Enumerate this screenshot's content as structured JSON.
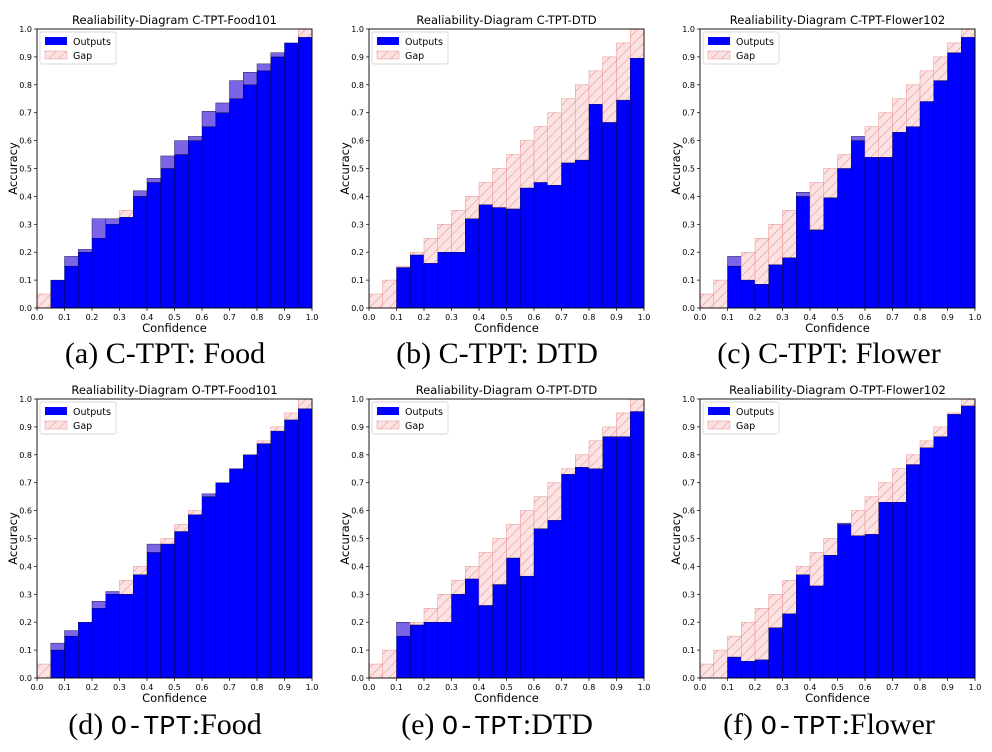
{
  "figure": {
    "captions": [
      {
        "prefix": "(a) ",
        "mono": "",
        "rest": "C-TPT: Food"
      },
      {
        "prefix": "(b) ",
        "mono": "",
        "rest": "C-TPT: DTD"
      },
      {
        "prefix": "(c) ",
        "mono": "",
        "rest": "C-TPT: Flower"
      },
      {
        "prefix": "(d) ",
        "mono": "O-TPT",
        "rest": ":Food"
      },
      {
        "prefix": "(e) ",
        "mono": "O-TPT",
        "rest": ":DTD"
      },
      {
        "prefix": "(f) ",
        "mono": "O-TPT",
        "rest": ":Flower"
      }
    ]
  },
  "colors": {
    "outputs": "#0000ff",
    "gap_fill": "#fbe3e3",
    "gap_hatch": "#e88f8f",
    "over_fill": "#7b64e6",
    "diag": "#9a9a9a"
  },
  "chart_data": [
    {
      "type": "bar",
      "title": "Realiability-Diagram C-TPT-Food101",
      "xlabel": "Confidence",
      "ylabel": "Accuracy",
      "xlim": [
        0,
        1
      ],
      "ylim": [
        0,
        1
      ],
      "xticks": [
        "0.0",
        "0.1",
        "0.2",
        "0.3",
        "0.4",
        "0.5",
        "0.6",
        "0.7",
        "0.8",
        "0.9",
        "1.0"
      ],
      "yticks": [
        "0.0",
        "0.1",
        "0.2",
        "0.3",
        "0.4",
        "0.5",
        "0.6",
        "0.7",
        "0.8",
        "0.9",
        "1.0"
      ],
      "legend": [
        "Outputs",
        "Gap"
      ],
      "legend_position": "top-left",
      "bin_width": 0.05,
      "bins": [
        0.025,
        0.075,
        0.125,
        0.175,
        0.225,
        0.275,
        0.325,
        0.375,
        0.425,
        0.475,
        0.525,
        0.575,
        0.625,
        0.675,
        0.725,
        0.775,
        0.825,
        0.875,
        0.925,
        0.975
      ],
      "accuracy": [
        null,
        0.1,
        0.185,
        0.21,
        0.32,
        0.32,
        0.325,
        0.42,
        0.465,
        0.545,
        0.6,
        0.615,
        0.705,
        0.735,
        0.815,
        0.845,
        0.875,
        0.915,
        0.95,
        0.97
      ]
    },
    {
      "type": "bar",
      "title": "Realiability-Diagram C-TPT-DTD",
      "xlabel": "Confidence",
      "ylabel": "Accuracy",
      "xlim": [
        0,
        1
      ],
      "ylim": [
        0,
        1
      ],
      "xticks": [
        "0.0",
        "0.1",
        "0.2",
        "0.3",
        "0.4",
        "0.5",
        "0.6",
        "0.7",
        "0.8",
        "0.9",
        "1.0"
      ],
      "yticks": [
        "0.0",
        "0.1",
        "0.2",
        "0.3",
        "0.4",
        "0.5",
        "0.6",
        "0.7",
        "0.8",
        "0.9",
        "1.0"
      ],
      "legend": [
        "Outputs",
        "Gap"
      ],
      "legend_position": "top-left",
      "bin_width": 0.05,
      "bins": [
        0.025,
        0.075,
        0.125,
        0.175,
        0.225,
        0.275,
        0.325,
        0.375,
        0.425,
        0.475,
        0.525,
        0.575,
        0.625,
        0.675,
        0.725,
        0.775,
        0.825,
        0.875,
        0.925,
        0.975
      ],
      "accuracy": [
        null,
        null,
        0.145,
        0.19,
        0.16,
        0.2,
        0.2,
        0.32,
        0.37,
        0.36,
        0.355,
        0.43,
        0.45,
        0.44,
        0.52,
        0.53,
        0.73,
        0.665,
        0.745,
        0.895
      ]
    },
    {
      "type": "bar",
      "title": "Realiability-Diagram C-TPT-Flower102",
      "xlabel": "Confidence",
      "ylabel": "Accuracy",
      "xlim": [
        0,
        1
      ],
      "ylim": [
        0,
        1
      ],
      "xticks": [
        "0.0",
        "0.1",
        "0.2",
        "0.3",
        "0.4",
        "0.5",
        "0.6",
        "0.7",
        "0.8",
        "0.9",
        "1.0"
      ],
      "yticks": [
        "0.0",
        "0.1",
        "0.2",
        "0.3",
        "0.4",
        "0.5",
        "0.6",
        "0.7",
        "0.8",
        "0.9",
        "1.0"
      ],
      "legend": [
        "Outputs",
        "Gap"
      ],
      "legend_position": "top-left",
      "bin_width": 0.05,
      "bins": [
        0.025,
        0.075,
        0.125,
        0.175,
        0.225,
        0.275,
        0.325,
        0.375,
        0.425,
        0.475,
        0.525,
        0.575,
        0.625,
        0.675,
        0.725,
        0.775,
        0.825,
        0.875,
        0.925,
        0.975
      ],
      "accuracy": [
        null,
        null,
        0.185,
        0.1,
        0.085,
        0.155,
        0.18,
        0.415,
        0.28,
        0.395,
        0.5,
        0.615,
        0.54,
        0.54,
        0.63,
        0.65,
        0.74,
        0.815,
        0.915,
        0.97
      ]
    },
    {
      "type": "bar",
      "title": "Realiability-Diagram O-TPT-Food101",
      "xlabel": "Confidence",
      "ylabel": "Accuracy",
      "xlim": [
        0,
        1
      ],
      "ylim": [
        0,
        1
      ],
      "xticks": [
        "0.0",
        "0.1",
        "0.2",
        "0.3",
        "0.4",
        "0.5",
        "0.6",
        "0.7",
        "0.8",
        "0.9",
        "1.0"
      ],
      "yticks": [
        "0.0",
        "0.1",
        "0.2",
        "0.3",
        "0.4",
        "0.5",
        "0.6",
        "0.7",
        "0.8",
        "0.9",
        "1.0"
      ],
      "legend": [
        "Outputs",
        "Gap"
      ],
      "legend_position": "top-left",
      "bin_width": 0.05,
      "bins": [
        0.025,
        0.075,
        0.125,
        0.175,
        0.225,
        0.275,
        0.325,
        0.375,
        0.425,
        0.475,
        0.525,
        0.575,
        0.625,
        0.675,
        0.725,
        0.775,
        0.825,
        0.875,
        0.925,
        0.975
      ],
      "accuracy": [
        null,
        0.125,
        0.17,
        0.2,
        0.275,
        0.31,
        0.3,
        0.37,
        0.48,
        0.48,
        0.525,
        0.585,
        0.66,
        0.7,
        0.75,
        0.8,
        0.84,
        0.885,
        0.925,
        0.965
      ]
    },
    {
      "type": "bar",
      "title": "Realiability-Diagram O-TPT-DTD",
      "xlabel": "Confidence",
      "ylabel": "Accuracy",
      "xlim": [
        0,
        1
      ],
      "ylim": [
        0,
        1
      ],
      "xticks": [
        "0.0",
        "0.1",
        "0.2",
        "0.3",
        "0.4",
        "0.5",
        "0.6",
        "0.7",
        "0.8",
        "0.9",
        "1.0"
      ],
      "yticks": [
        "0.0",
        "0.1",
        "0.2",
        "0.3",
        "0.4",
        "0.5",
        "0.6",
        "0.7",
        "0.8",
        "0.9",
        "1.0"
      ],
      "legend": [
        "Outputs",
        "Gap"
      ],
      "legend_position": "top-left",
      "bin_width": 0.05,
      "bins": [
        0.025,
        0.075,
        0.125,
        0.175,
        0.225,
        0.275,
        0.325,
        0.375,
        0.425,
        0.475,
        0.525,
        0.575,
        0.625,
        0.675,
        0.725,
        0.775,
        0.825,
        0.875,
        0.925,
        0.975
      ],
      "accuracy": [
        null,
        null,
        0.2,
        0.19,
        0.2,
        0.2,
        0.3,
        0.355,
        0.26,
        0.335,
        0.43,
        0.365,
        0.535,
        0.565,
        0.73,
        0.755,
        0.75,
        0.865,
        0.865,
        0.955
      ]
    },
    {
      "type": "bar",
      "title": "Realiability-Diagram O-TPT-Flower102",
      "xlabel": "Confidence",
      "ylabel": "Accuracy",
      "xlim": [
        0,
        1
      ],
      "ylim": [
        0,
        1
      ],
      "xticks": [
        "0.0",
        "0.1",
        "0.2",
        "0.3",
        "0.4",
        "0.5",
        "0.6",
        "0.7",
        "0.8",
        "0.9",
        "1.0"
      ],
      "yticks": [
        "0.0",
        "0.1",
        "0.2",
        "0.3",
        "0.4",
        "0.5",
        "0.6",
        "0.7",
        "0.8",
        "0.9",
        "1.0"
      ],
      "legend": [
        "Outputs",
        "Gap"
      ],
      "legend_position": "top-left",
      "bin_width": 0.05,
      "bins": [
        0.025,
        0.075,
        0.125,
        0.175,
        0.225,
        0.275,
        0.325,
        0.375,
        0.425,
        0.475,
        0.525,
        0.575,
        0.625,
        0.675,
        0.725,
        0.775,
        0.825,
        0.875,
        0.925,
        0.975
      ],
      "accuracy": [
        null,
        null,
        0.075,
        0.06,
        0.065,
        0.18,
        0.23,
        0.37,
        0.33,
        0.44,
        0.555,
        0.51,
        0.515,
        0.63,
        0.63,
        0.765,
        0.825,
        0.865,
        0.945,
        0.975
      ]
    }
  ]
}
